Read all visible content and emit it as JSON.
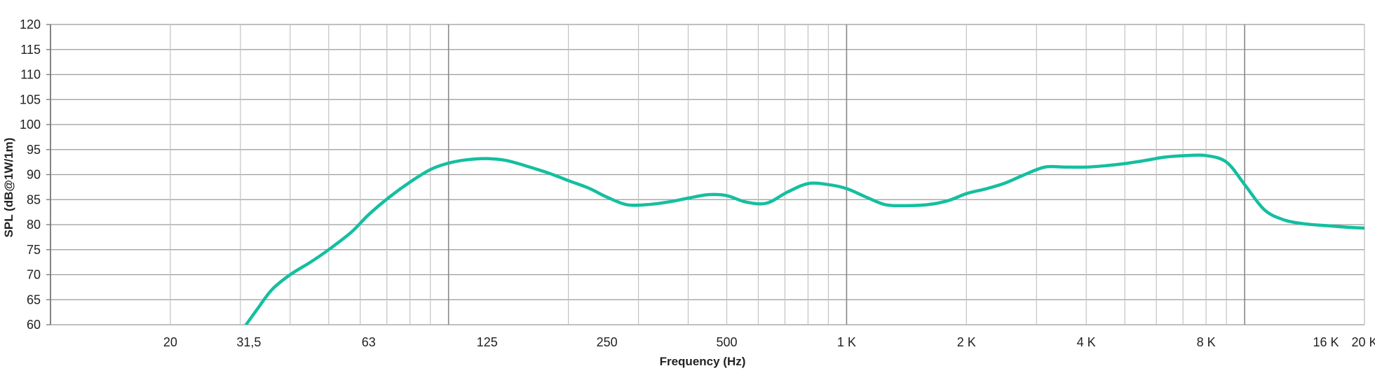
{
  "chart_data": {
    "type": "line",
    "title": "",
    "xlabel": "Frequency (Hz)",
    "ylabel": "SPL (dB@1W/1m)",
    "x_scale": "log",
    "xlim": [
      10,
      20000
    ],
    "ylim": [
      60,
      120
    ],
    "grid": true,
    "y_ticks": [
      {
        "value": 120,
        "label": "120"
      },
      {
        "value": 115,
        "label": "115"
      },
      {
        "value": 110,
        "label": "110"
      },
      {
        "value": 105,
        "label": "105"
      },
      {
        "value": 100,
        "label": "100"
      },
      {
        "value": 95,
        "label": "95"
      },
      {
        "value": 90,
        "label": "90"
      },
      {
        "value": 85,
        "label": "85"
      },
      {
        "value": 80,
        "label": "80"
      },
      {
        "value": 75,
        "label": "75"
      },
      {
        "value": 70,
        "label": "70"
      },
      {
        "value": 65,
        "label": "65"
      },
      {
        "value": 60,
        "label": "60"
      }
    ],
    "x_ticks": [
      {
        "value": 20,
        "label": "20"
      },
      {
        "value": 31.5,
        "label": "31,5"
      },
      {
        "value": 63,
        "label": "63"
      },
      {
        "value": 125,
        "label": "125"
      },
      {
        "value": 250,
        "label": "250"
      },
      {
        "value": 500,
        "label": "500"
      },
      {
        "value": 1000,
        "label": "1 K"
      },
      {
        "value": 2000,
        "label": "2 K"
      },
      {
        "value": 4000,
        "label": "4 K"
      },
      {
        "value": 8000,
        "label": "8 K"
      },
      {
        "value": 16000,
        "label": "16 K"
      },
      {
        "value": 20000,
        "label": "20 K"
      }
    ],
    "series": [
      {
        "color": "#14bfa0",
        "x": [
          31,
          33,
          36,
          40,
          45,
          50,
          57,
          63,
          71,
          80,
          90,
          100,
          112,
          125,
          140,
          160,
          180,
          200,
          225,
          250,
          280,
          315,
          355,
          400,
          450,
          500,
          560,
          630,
          710,
          800,
          900,
          1000,
          1120,
          1250,
          1400,
          1600,
          1800,
          2000,
          2250,
          2500,
          2800,
          3150,
          3550,
          4000,
          4500,
          5000,
          5600,
          6300,
          7100,
          8000,
          9000,
          10000,
          11200,
          12500,
          14000,
          16000,
          18000,
          20000
        ],
        "y": [
          60,
          63,
          67,
          70,
          72.5,
          75,
          78.5,
          82,
          85.5,
          88.5,
          91,
          92.3,
          93,
          93.2,
          92.8,
          91.5,
          90.2,
          88.8,
          87.3,
          85.5,
          84,
          84,
          84.5,
          85.3,
          86,
          85.8,
          84.5,
          84.3,
          86.5,
          88.2,
          88,
          87.2,
          85.5,
          84,
          83.8,
          84,
          84.8,
          86.2,
          87.2,
          88.3,
          90,
          91.5,
          91.5,
          91.5,
          91.8,
          92.2,
          92.8,
          93.5,
          93.8,
          93.8,
          92.5,
          88,
          83,
          81,
          80.2,
          79.8,
          79.5,
          79.3
        ]
      }
    ]
  }
}
